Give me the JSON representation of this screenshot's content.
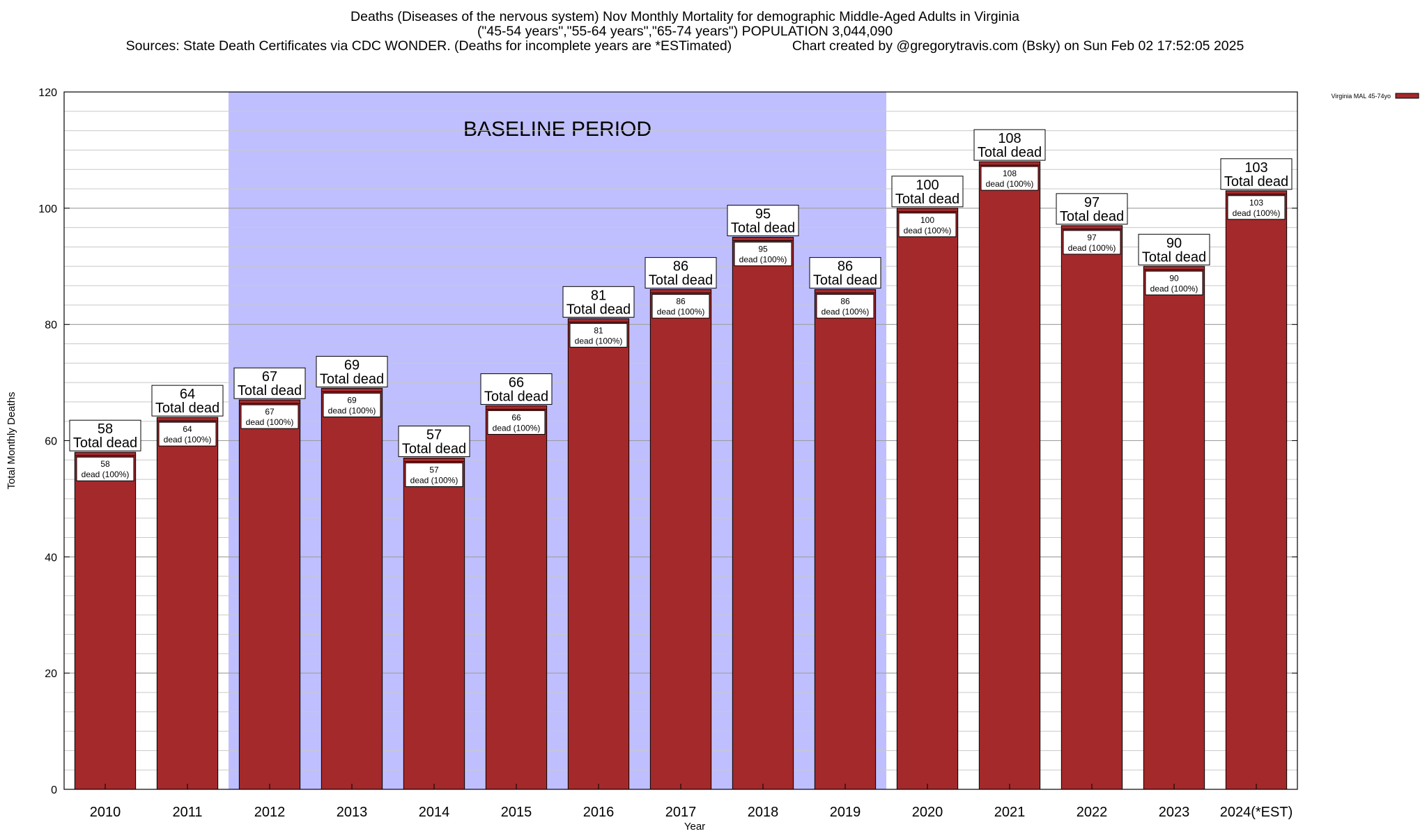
{
  "titles": {
    "line1": "Deaths (Diseases of the nervous system) Nov Monthly Mortality for demographic Middle-Aged Adults in Virginia",
    "line2": "(\"45-54 years\",\"55-64 years\",\"65-74 years\") POPULATION 3,044,090",
    "line3_left": "Sources: State Death Certificates via CDC WONDER. (Deaths for incomplete years are *ESTimated)",
    "line3_right": "Chart created by @gregorytravis.com (Bsky) on Sun Feb 02 17:52:05 2025"
  },
  "colors": {
    "bar": "#a4292b",
    "baseline_band": "#bfbfff",
    "grid": "#c8c8c8"
  },
  "chart_data": {
    "type": "bar",
    "categories": [
      "2010",
      "2011",
      "2012",
      "2013",
      "2014",
      "2015",
      "2016",
      "2017",
      "2018",
      "2019",
      "2020",
      "2021",
      "2022",
      "2023",
      "2024(*EST)"
    ],
    "series": [
      {
        "name": "Virginia MAL 45-74yo",
        "values": [
          58,
          64,
          67,
          69,
          57,
          66,
          81,
          86,
          95,
          86,
          100,
          108,
          97,
          90,
          103
        ]
      }
    ],
    "xlabel": "Year",
    "ylabel": "Total Monthly Deaths",
    "ylim": [
      0,
      120
    ],
    "yticks": [
      0,
      20,
      40,
      60,
      80,
      100,
      120
    ],
    "grid": true,
    "legend": "top-right",
    "label_top_suffix": "Total dead",
    "label_inner_suffix": "dead (100%)",
    "baseline_band": {
      "from": "2012",
      "to": "2019",
      "label": "BASELINE PERIOD"
    }
  }
}
